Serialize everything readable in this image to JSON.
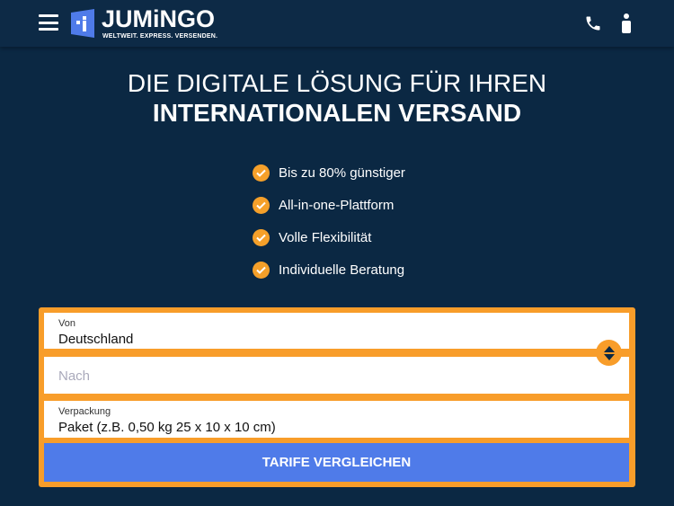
{
  "header": {
    "brand": "JUMiNGO",
    "tagline": "WELTWEIT. EXPRESS. VERSENDEN."
  },
  "hero": {
    "line1": "DIE DIGITALE LÖSUNG FÜR IHREN",
    "line2": "INTERNATIONALEN VERSAND"
  },
  "features": [
    "Bis zu 80% günstiger",
    "All-in-one-Plattform",
    "Volle Flexibilität",
    "Individuelle Beratung"
  ],
  "form": {
    "from_label": "Von",
    "from_value": "Deutschland",
    "to_placeholder": "Nach",
    "package_label": "Verpackung",
    "package_value": "Paket (z.B. 0,50 kg 25 x 10 x 10 cm)",
    "submit": "TARIFE VERGLEICHEN"
  },
  "colors": {
    "accent": "#f89d2a",
    "button": "#4f7be9",
    "background": "#0b2843"
  }
}
